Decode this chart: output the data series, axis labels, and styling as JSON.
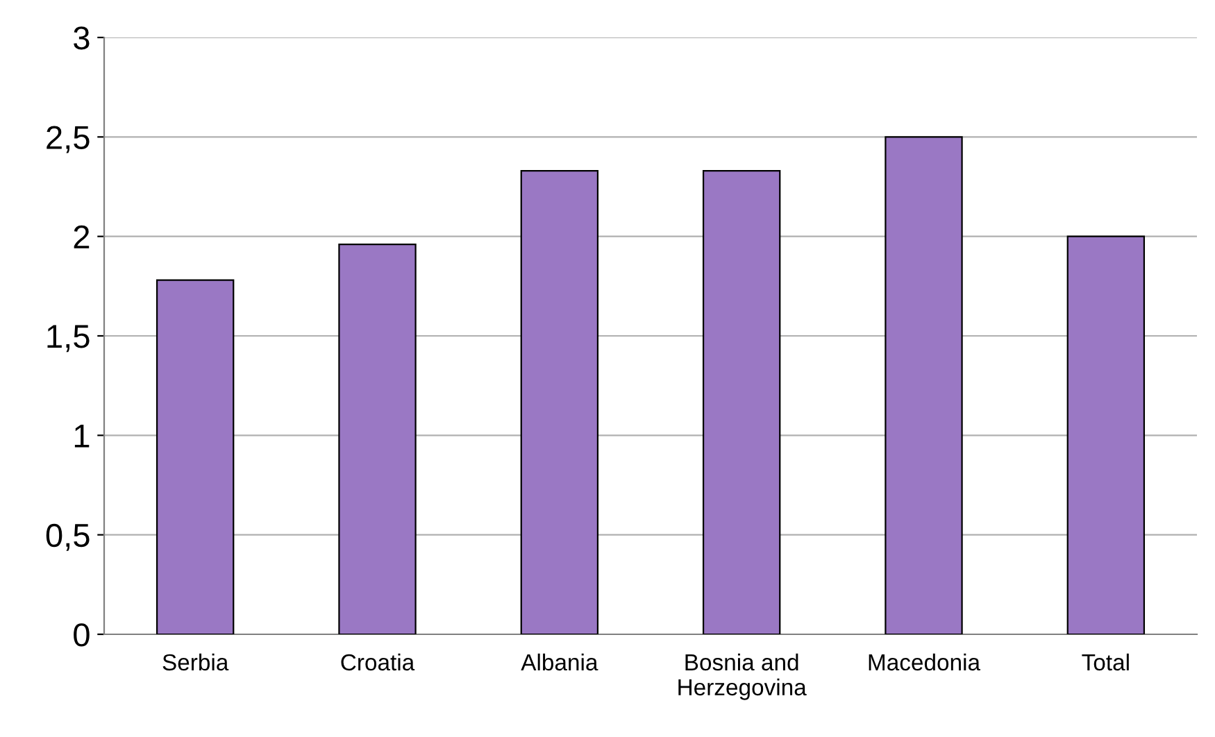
{
  "chart_data": {
    "type": "bar",
    "categories": [
      "Serbia",
      "Croatia",
      "Albania",
      "Bosnia and\nHerzegovina",
      "Macedonia",
      "Total"
    ],
    "values": [
      1.78,
      1.96,
      2.33,
      2.33,
      2.5,
      2.0
    ],
    "color": "#9a78c4",
    "ylim": [
      0,
      3
    ],
    "yticks": [
      0,
      {
        "value": 0.5,
        "label": "0,5"
      },
      1,
      {
        "value": 1.5,
        "label": "1,5"
      },
      2,
      {
        "value": 2.5,
        "label": "2,5"
      },
      3
    ],
    "grid": "y"
  }
}
